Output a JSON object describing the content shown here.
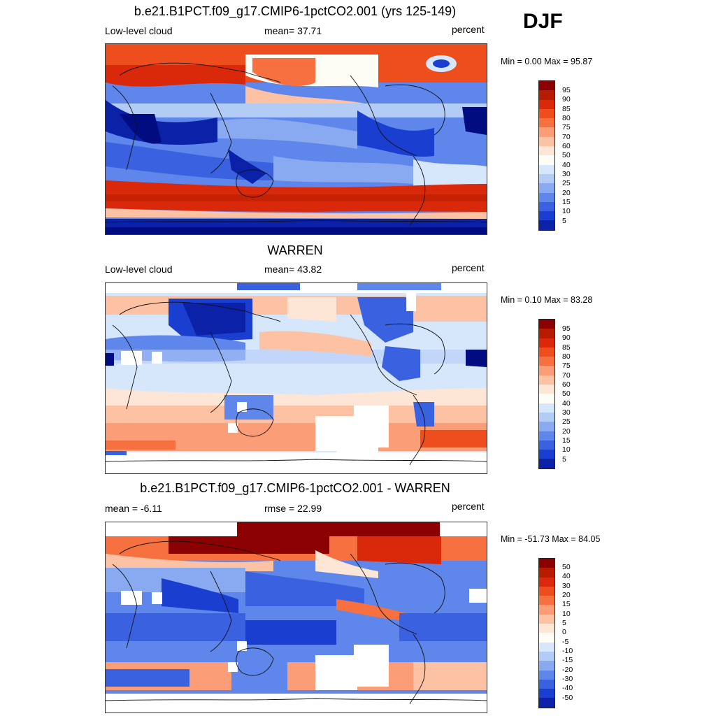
{
  "season": "DJF",
  "panels": [
    {
      "title": "b.e21.B1PCT.f09_g17.CMIP6-1pctCO2.001 (yrs 125-149)",
      "left_label": "Low-level cloud",
      "center_label": "mean=  37.71",
      "right_label": "percent",
      "minmax": "Min =   0.00 Max =  95.87",
      "colorbar_labels": [
        "95",
        "90",
        "85",
        "80",
        "75",
        "70",
        "60",
        "50",
        "40",
        "30",
        "25",
        "20",
        "15",
        "10",
        "5"
      ]
    },
    {
      "title": "WARREN",
      "left_label": "Low-level cloud",
      "center_label": "mean=  43.82",
      "right_label": "percent",
      "minmax": "Min =   0.10 Max =  83.28",
      "colorbar_labels": [
        "95",
        "90",
        "85",
        "80",
        "75",
        "70",
        "60",
        "50",
        "40",
        "30",
        "25",
        "20",
        "15",
        "10",
        "5"
      ]
    },
    {
      "title": "b.e21.B1PCT.f09_g17.CMIP6-1pctCO2.001 - WARREN",
      "left_label": "mean =  -6.11",
      "center_label": "rmse =  22.99",
      "right_label": "percent",
      "minmax": "Min = -51.73 Max =  84.05",
      "colorbar_labels": [
        "50",
        "40",
        "30",
        "20",
        "15",
        "10",
        "5",
        "0",
        "-5",
        "-10",
        "-15",
        "-20",
        "-30",
        "-40",
        "-50"
      ]
    }
  ],
  "colors": {
    "scale": [
      "#8b0000",
      "#b71c00",
      "#d9290a",
      "#ee4d1d",
      "#f7703f",
      "#fb9d76",
      "#fcc2a3",
      "#fde6d6",
      "#fdfdf5",
      "#d7e7fb",
      "#b3ccf6",
      "#89aaf0",
      "#5f86ea",
      "#3a62e0",
      "#1a3fd0",
      "#0b22a8",
      "#000c80"
    ]
  }
}
